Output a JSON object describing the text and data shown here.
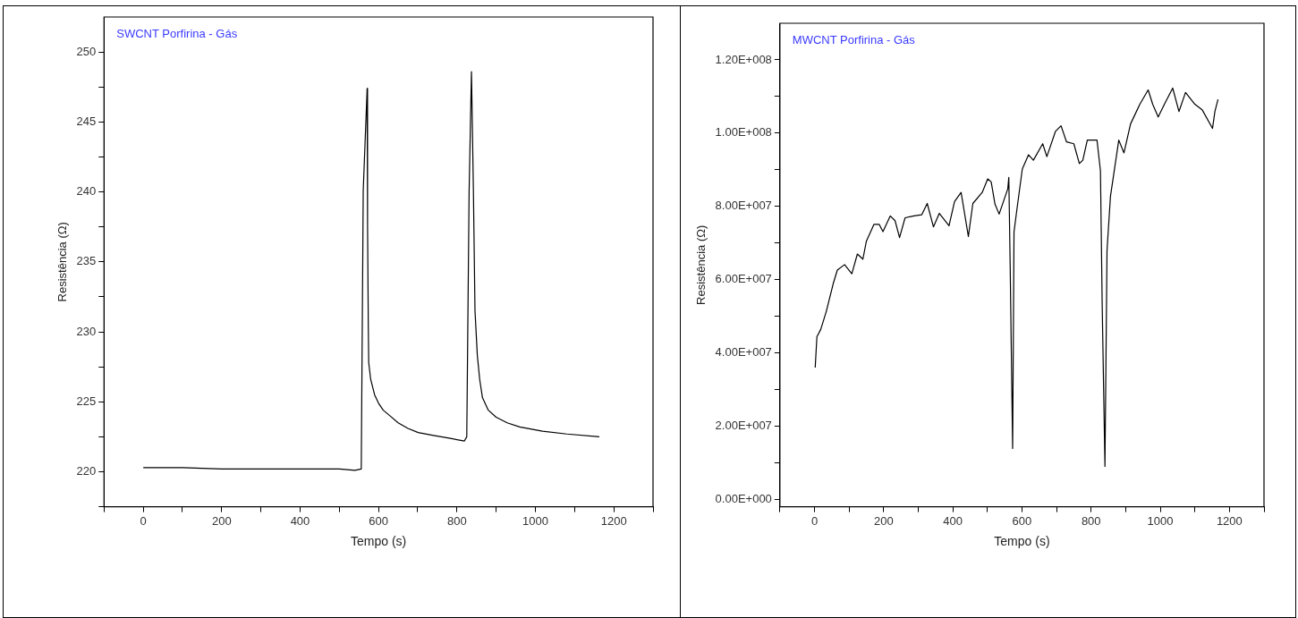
{
  "chart_data": [
    {
      "type": "line",
      "title": "SWCNT Porfirina - Gás",
      "xlabel": "Tempo (s)",
      "ylabel": "Resistência (Ω)",
      "xlim": [
        -100,
        1300
      ],
      "ylim": [
        217.5,
        252.5
      ],
      "xticks": [
        {
          "value": -100,
          "label": null
        },
        0,
        {
          "value": 100,
          "label": null
        },
        200,
        {
          "value": 300,
          "label": null
        },
        400,
        {
          "value": 500,
          "label": null
        },
        600,
        {
          "value": 700,
          "label": null
        },
        800,
        {
          "value": 900,
          "label": null
        },
        1000,
        {
          "value": 1100,
          "label": null
        },
        1200,
        {
          "value": 1300,
          "label": null
        }
      ],
      "yticks": [
        {
          "value": 217.5,
          "label": null
        },
        220,
        {
          "value": 222.5,
          "label": null
        },
        225,
        {
          "value": 227.5,
          "label": null
        },
        230,
        {
          "value": 232.5,
          "label": null
        },
        235,
        {
          "value": 237.5,
          "label": null
        },
        240,
        {
          "value": 242.5,
          "label": null
        },
        245,
        {
          "value": 247.5,
          "label": null
        },
        250
      ],
      "grid": false,
      "legend": false,
      "marker": "none",
      "line_style": "solid",
      "series": [
        {
          "color": "#000000",
          "x": [
            0,
            100,
            200,
            300,
            400,
            500,
            540,
            556,
            561,
            571,
            572,
            574,
            575,
            580,
            590,
            600,
            612,
            629,
            650,
            675,
            701,
            740,
            780,
            819,
            825,
            831,
            837,
            842,
            846,
            852,
            858,
            865,
            880,
            900,
            928,
            960,
            1018,
            1080,
            1163
          ],
          "values": [
            220.3,
            220.3,
            220.2,
            220.2,
            220.2,
            220.2,
            220.1,
            220.2,
            240.1,
            247.4,
            237.7,
            230.2,
            227.8,
            226.6,
            225.5,
            224.9,
            224.4,
            224.0,
            223.5,
            223.1,
            222.8,
            222.6,
            222.4,
            222.2,
            222.5,
            240.0,
            248.6,
            240.0,
            231.5,
            228.3,
            226.6,
            225.3,
            224.4,
            223.9,
            223.5,
            223.2,
            222.9,
            222.7,
            222.5
          ]
        }
      ]
    },
    {
      "type": "line",
      "title": "MWCNT Porfirina - Gás",
      "xlabel": "Tempo (s)",
      "ylabel": "Resistência (Ω)",
      "xlim": [
        -100,
        1300
      ],
      "ylim": [
        -2000000,
        130000000
      ],
      "xticks": [
        {
          "value": -100,
          "label": null
        },
        0,
        {
          "value": 100,
          "label": null
        },
        200,
        {
          "value": 300,
          "label": null
        },
        400,
        {
          "value": 500,
          "label": null
        },
        600,
        {
          "value": 700,
          "label": null
        },
        800,
        {
          "value": 900,
          "label": null
        },
        1000,
        {
          "value": 1100,
          "label": null
        },
        1200,
        {
          "value": 1300,
          "label": null
        }
      ],
      "yticks": [
        {
          "value": 0,
          "label": "0.00E+000"
        },
        {
          "value": 10000000,
          "label": null
        },
        {
          "value": 20000000,
          "label": "2.00E+007"
        },
        {
          "value": 30000000,
          "label": null
        },
        {
          "value": 40000000,
          "label": "4.00E+007"
        },
        {
          "value": 50000000,
          "label": null
        },
        {
          "value": 60000000,
          "label": "6.00E+007"
        },
        {
          "value": 70000000,
          "label": null
        },
        {
          "value": 80000000,
          "label": "8.00E+007"
        },
        {
          "value": 90000000,
          "label": null
        },
        {
          "value": 100000000,
          "label": "1.00E+008"
        },
        {
          "value": 110000000,
          "label": null
        },
        {
          "value": 120000000,
          "label": "1.20E+008"
        }
      ],
      "grid": false,
      "legend": false,
      "marker": "none",
      "line_style": "solid",
      "series": [
        {
          "color": "#000000",
          "x": [
            2,
            7,
            18,
            34,
            55,
            66,
            87,
            108,
            124,
            140,
            150,
            172,
            187,
            198,
            219,
            233,
            246,
            262,
            288,
            310,
            326,
            344,
            361,
            389,
            405,
            424,
            445,
            458,
            485,
            501,
            511,
            522,
            534,
            559,
            562,
            566,
            573,
            577,
            585,
            601,
            619,
            633,
            660,
            672,
            697,
            713,
            729,
            750,
            766,
            776,
            789,
            817,
            827,
            832,
            840,
            846,
            856,
            880,
            895,
            914,
            941,
            965,
            978,
            994,
            1012,
            1036,
            1054,
            1073,
            1100,
            1121,
            1151,
            1158,
            1167
          ],
          "values": [
            36000000,
            44400000,
            46400000,
            51300000,
            59200000,
            62600000,
            64100000,
            61600000,
            67000000,
            65600000,
            70500000,
            75100000,
            75100000,
            73100000,
            77400000,
            76100000,
            71500000,
            76900000,
            77400000,
            77700000,
            80800000,
            74400000,
            78100000,
            74700000,
            81300000,
            83800000,
            71800000,
            80800000,
            83800000,
            87500000,
            86700000,
            80600000,
            77900000,
            84800000,
            87900000,
            63100000,
            13900000,
            73000000,
            78900000,
            90200000,
            94100000,
            92600000,
            97100000,
            93600000,
            100500000,
            102000000,
            97600000,
            97100000,
            91700000,
            92600000,
            98100000,
            98100000,
            89700000,
            53300000,
            9000000,
            68000000,
            82800000,
            98100000,
            94600000,
            102500000,
            107900000,
            111800000,
            107900000,
            104400000,
            107900000,
            112300000,
            105900000,
            111100000,
            107900000,
            106400000,
            101300000,
            105900000,
            109200000
          ]
        }
      ]
    }
  ]
}
